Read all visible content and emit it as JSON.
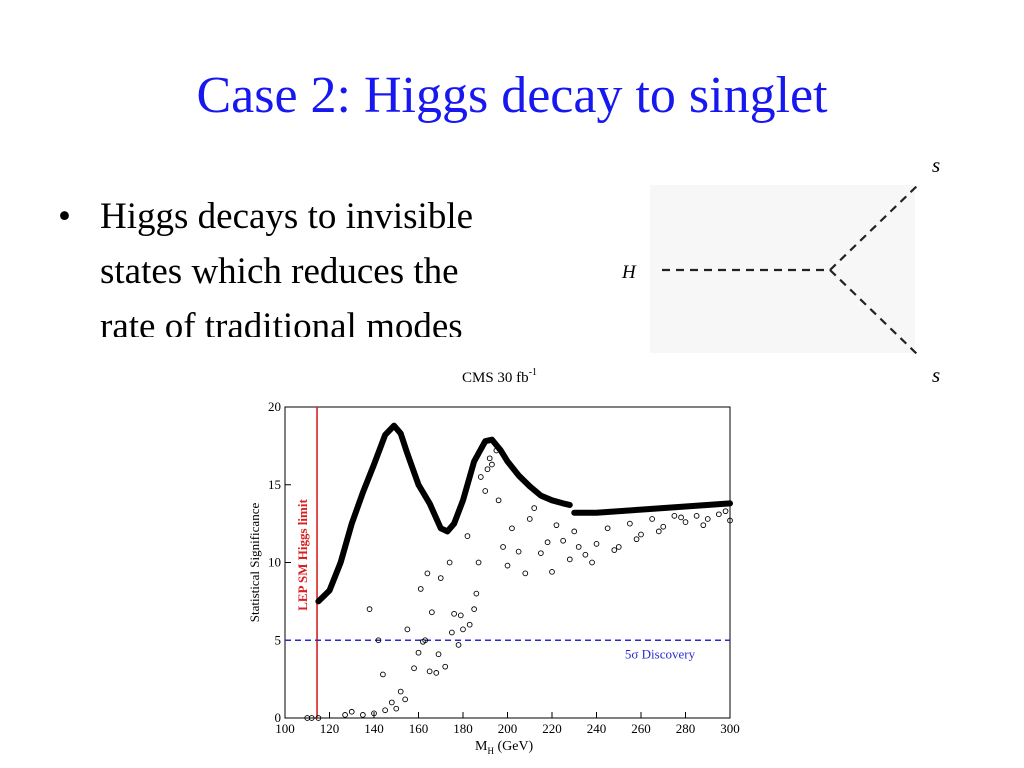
{
  "slide": {
    "title": "Case 2: Higgs decay to singlet",
    "bullet": [
      "Higgs decays to invisible",
      "states which reduces the",
      "rate of traditional modes"
    ]
  },
  "diagram": {
    "incoming": "H",
    "outgoing": [
      "s",
      "s"
    ]
  },
  "chart_data": {
    "type": "scatter",
    "title": "CMS 30 fb",
    "title_sup": "-1",
    "xlabel": "M",
    "xlabel_sub": "H",
    "xlabel_unit": " (GeV)",
    "ylabel": "Statistical Significance",
    "xlim": [
      100,
      300
    ],
    "xticks": [
      100,
      120,
      140,
      160,
      180,
      200,
      220,
      240,
      260,
      280,
      300
    ],
    "ylim": [
      0,
      20
    ],
    "yticks": [
      0,
      5,
      10,
      15,
      20
    ],
    "reference_lines": [
      {
        "axis": "x",
        "value": 114.4,
        "color": "#d82020",
        "label": "LEP SM Higgs limit",
        "dashed": false
      },
      {
        "axis": "y",
        "value": 5,
        "color": "#2a2ad0",
        "label": "5σ Discovery",
        "dashed": true
      }
    ],
    "series": [
      {
        "type": "line",
        "color": "#000000",
        "x": [
          115,
          120,
          125,
          130,
          135,
          140,
          145,
          149,
          152,
          155,
          160,
          165,
          170,
          173,
          176,
          180,
          185,
          190,
          193,
          197,
          200,
          205,
          210,
          215,
          220,
          225,
          228,
          229,
          230,
          240,
          260,
          280,
          300
        ],
        "values": [
          7.5,
          8.2,
          10,
          12.5,
          14.5,
          16.3,
          18.2,
          18.8,
          18.3,
          17,
          15,
          13.8,
          12.2,
          12,
          12.5,
          14,
          16.5,
          17.8,
          17.9,
          17.2,
          16.5,
          15.6,
          14.9,
          14.3,
          14,
          13.8,
          13.7,
          null,
          13.2,
          13.2,
          13.4,
          13.6,
          13.8
        ]
      },
      {
        "type": "scatter",
        "color": "#000000",
        "x": [
          110,
          112,
          115,
          127,
          130,
          135,
          138,
          140,
          142,
          144,
          145,
          148,
          150,
          152,
          154,
          155,
          158,
          160,
          161,
          162,
          163,
          164,
          165,
          166,
          168,
          169,
          170,
          172,
          174,
          175,
          176,
          178,
          179,
          180,
          182,
          183,
          185,
          186,
          187,
          188,
          190,
          191,
          192,
          193,
          195,
          196,
          198,
          200,
          202,
          205,
          208,
          210,
          212,
          215,
          218,
          220,
          222,
          225,
          228,
          230,
          232,
          235,
          238,
          240,
          245,
          248,
          250,
          255,
          258,
          260,
          265,
          268,
          270,
          275,
          278,
          280,
          285,
          288,
          290,
          295,
          298,
          300
        ],
        "values": [
          0,
          0,
          0,
          0.2,
          0.4,
          0.2,
          7,
          0.3,
          5,
          2.8,
          0.5,
          1,
          0.6,
          1.7,
          1.2,
          5.7,
          3.2,
          4.2,
          8.3,
          4.9,
          5,
          9.3,
          3,
          6.8,
          2.9,
          4.1,
          9,
          3.3,
          10,
          5.5,
          6.7,
          4.7,
          6.6,
          5.7,
          11.7,
          6,
          7,
          8,
          10,
          15.5,
          14.6,
          16,
          16.7,
          16.3,
          17.2,
          14,
          11,
          9.8,
          12.2,
          10.7,
          9.3,
          12.8,
          13.5,
          10.6,
          11.3,
          9.4,
          12.4,
          11.4,
          10.2,
          12,
          11,
          10.5,
          10,
          11.2,
          12.2,
          10.8,
          11,
          12.5,
          11.5,
          11.8,
          12.8,
          12,
          12.3,
          13,
          12.9,
          12.6,
          13,
          12.4,
          12.8,
          13.1,
          13.3,
          12.7
        ]
      }
    ]
  }
}
